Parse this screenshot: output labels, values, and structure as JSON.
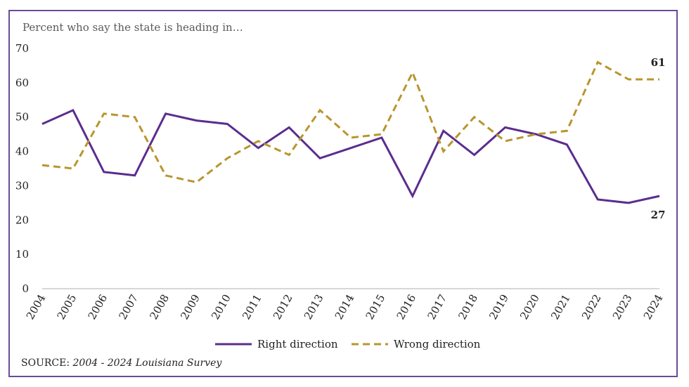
{
  "chart_data": {
    "type": "line",
    "title": "",
    "subtitle": "Percent who say the state is heading in…",
    "x": [
      "2004",
      "2005",
      "2006",
      "2007",
      "2008",
      "2009",
      "2010",
      "2011",
      "2012",
      "2013",
      "2014",
      "2015",
      "2016",
      "2017",
      "2018",
      "2019",
      "2020",
      "2021",
      "2022",
      "2023",
      "2024"
    ],
    "ylim": [
      0,
      70
    ],
    "yticks": [
      0,
      10,
      20,
      30,
      40,
      50,
      60,
      70
    ],
    "grid": false,
    "legend_position": "bottom",
    "series": [
      {
        "name": "Right direction",
        "color": "#5b2d8e",
        "style": "solid",
        "values": [
          48,
          52,
          34,
          33,
          51,
          49,
          48,
          41,
          47,
          38,
          41,
          44,
          27,
          46,
          39,
          47,
          45,
          42,
          26,
          25,
          27
        ]
      },
      {
        "name": "Wrong direction",
        "color": "#b8962e",
        "style": "dashed",
        "values": [
          36,
          35,
          51,
          50,
          33,
          31,
          38,
          43,
          39,
          52,
          44,
          45,
          63,
          40,
          50,
          43,
          45,
          46,
          66,
          61,
          61
        ]
      }
    ],
    "annotations": [
      {
        "series": "Wrong direction",
        "x": "2024",
        "text": "61"
      },
      {
        "series": "Right direction",
        "x": "2024",
        "text": "27"
      }
    ]
  },
  "source": {
    "prefix": "SOURCE: ",
    "text": "2004 - 2024 Louisiana Survey"
  }
}
